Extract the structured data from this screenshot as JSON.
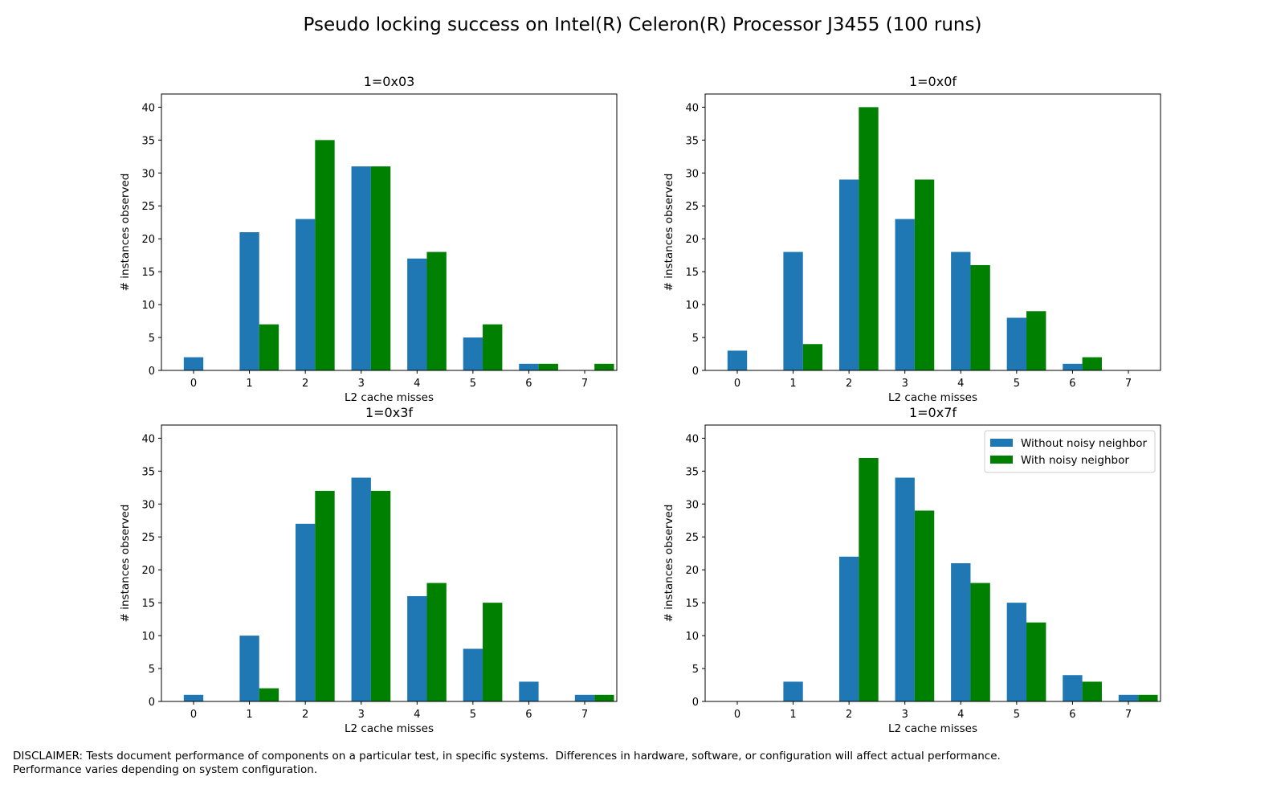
{
  "figure": {
    "title": "Pseudo locking success on Intel(R) Celeron(R) Processor J3455 (100 runs)"
  },
  "colors": {
    "without": "#1f77b4",
    "with": "#008000"
  },
  "legend": {
    "placement": "upper-right of bottom-right subplot",
    "entries": [
      "Without noisy neighbor",
      "With noisy neighbor"
    ]
  },
  "chart_data": [
    {
      "type": "bar",
      "title": "1=0x03",
      "xlabel": "L2 cache misses",
      "ylabel": "# instances observed",
      "categories": [
        "0",
        "1",
        "2",
        "3",
        "4",
        "5",
        "6",
        "7"
      ],
      "ylim": [
        0,
        42
      ],
      "yticks": [
        0,
        5,
        10,
        15,
        20,
        25,
        30,
        35,
        40
      ],
      "series": [
        {
          "name": "Without noisy neighbor",
          "values": [
            2,
            21,
            23,
            31,
            17,
            5,
            1,
            0
          ]
        },
        {
          "name": "With noisy neighbor",
          "values": [
            0,
            7,
            35,
            31,
            18,
            7,
            1,
            1
          ]
        }
      ]
    },
    {
      "type": "bar",
      "title": "1=0x0f",
      "xlabel": "L2 cache misses",
      "ylabel": "# instances observed",
      "categories": [
        "0",
        "1",
        "2",
        "3",
        "4",
        "5",
        "6",
        "7"
      ],
      "ylim": [
        0,
        42
      ],
      "yticks": [
        0,
        5,
        10,
        15,
        20,
        25,
        30,
        35,
        40
      ],
      "series": [
        {
          "name": "Without noisy neighbor",
          "values": [
            3,
            18,
            29,
            23,
            18,
            8,
            1,
            0
          ]
        },
        {
          "name": "With noisy neighbor",
          "values": [
            0,
            4,
            40,
            29,
            16,
            9,
            2,
            0
          ]
        }
      ]
    },
    {
      "type": "bar",
      "title": "1=0x3f",
      "xlabel": "L2 cache misses",
      "ylabel": "# instances observed",
      "categories": [
        "0",
        "1",
        "2",
        "3",
        "4",
        "5",
        "6",
        "7"
      ],
      "ylim": [
        0,
        42
      ],
      "yticks": [
        0,
        5,
        10,
        15,
        20,
        25,
        30,
        35,
        40
      ],
      "series": [
        {
          "name": "Without noisy neighbor",
          "values": [
            1,
            10,
            27,
            34,
            16,
            8,
            3,
            1
          ]
        },
        {
          "name": "With noisy neighbor",
          "values": [
            0,
            2,
            32,
            32,
            18,
            15,
            0,
            1
          ]
        }
      ]
    },
    {
      "type": "bar",
      "title": "1=0x7f",
      "xlabel": "L2 cache misses",
      "ylabel": "# instances observed",
      "categories": [
        "0",
        "1",
        "2",
        "3",
        "4",
        "5",
        "6",
        "7"
      ],
      "ylim": [
        0,
        42
      ],
      "yticks": [
        0,
        5,
        10,
        15,
        20,
        25,
        30,
        35,
        40
      ],
      "series": [
        {
          "name": "Without noisy neighbor",
          "values": [
            0,
            3,
            22,
            34,
            21,
            15,
            4,
            1
          ]
        },
        {
          "name": "With noisy neighbor",
          "values": [
            0,
            0,
            37,
            29,
            18,
            12,
            3,
            1
          ]
        }
      ],
      "show_legend": true
    }
  ],
  "disclaimer": {
    "line1": "DISCLAIMER: Tests document performance of components on a particular test, in specific systems.  Differences in hardware, software, or configuration will affect actual performance.",
    "line2": "Performance varies depending on system configuration."
  }
}
